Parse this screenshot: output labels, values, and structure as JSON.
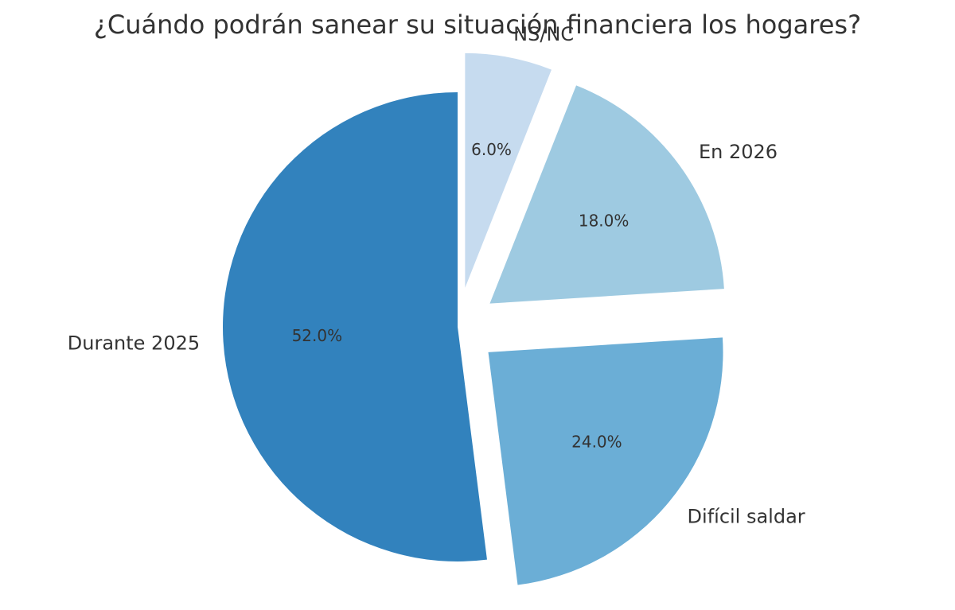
{
  "chart_data": {
    "type": "pie",
    "title": "¿Cuándo podrán sanear su situación financiera los hogares?",
    "slices": [
      {
        "label": "Durante 2025",
        "value": 52.0,
        "pct_text": "52.0%",
        "color": "#3282bd",
        "exploded": false
      },
      {
        "label": "Difícil saldar",
        "value": 24.0,
        "pct_text": "24.0%",
        "color": "#6baed6",
        "exploded": true
      },
      {
        "label": "En 2026",
        "value": 18.0,
        "pct_text": "18.0%",
        "color": "#9ecae1",
        "exploded": true
      },
      {
        "label": "NS/NC",
        "value": 6.0,
        "pct_text": "6.0%",
        "color": "#c6dbef",
        "exploded": true
      }
    ],
    "start_angle": "top",
    "direction": "counterclockwise",
    "legend": "none"
  }
}
